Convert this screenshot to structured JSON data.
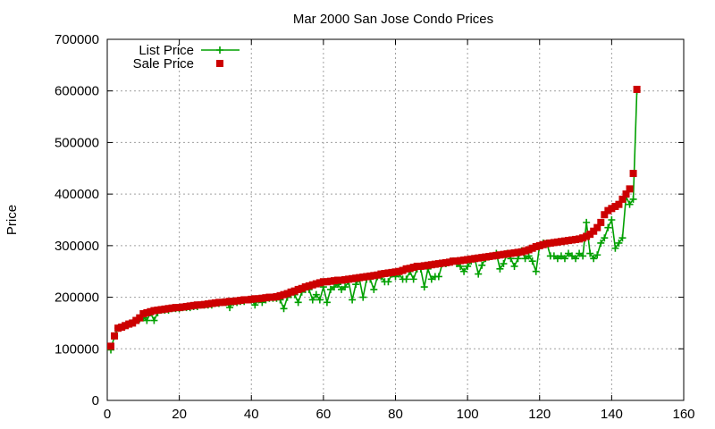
{
  "chart_data": {
    "type": "line",
    "title": "Mar 2000 San Jose Condo Prices",
    "xlabel": "",
    "ylabel": "Price",
    "xlim": [
      0,
      160
    ],
    "ylim": [
      0,
      700000
    ],
    "x_ticks": [
      0,
      20,
      40,
      60,
      80,
      100,
      120,
      140,
      160
    ],
    "y_ticks": [
      0,
      100000,
      200000,
      300000,
      400000,
      500000,
      600000,
      700000
    ],
    "grid": true,
    "legend_position": "top-left",
    "series": [
      {
        "name": "List Price",
        "style": "line-with-plus-markers",
        "color": "#00a000",
        "x": [
          1,
          2,
          3,
          4,
          5,
          6,
          7,
          8,
          9,
          10,
          11,
          12,
          13,
          14,
          15,
          16,
          17,
          18,
          19,
          20,
          21,
          22,
          23,
          24,
          25,
          26,
          27,
          28,
          29,
          30,
          31,
          32,
          33,
          34,
          35,
          36,
          37,
          38,
          39,
          40,
          41,
          42,
          43,
          44,
          45,
          46,
          47,
          48,
          49,
          50,
          51,
          52,
          53,
          54,
          55,
          56,
          57,
          58,
          59,
          60,
          61,
          62,
          63,
          64,
          65,
          66,
          67,
          68,
          69,
          70,
          71,
          72,
          73,
          74,
          75,
          76,
          77,
          78,
          79,
          80,
          81,
          82,
          83,
          84,
          85,
          86,
          87,
          88,
          89,
          90,
          91,
          92,
          93,
          94,
          95,
          96,
          97,
          98,
          99,
          100,
          101,
          102,
          103,
          104,
          105,
          106,
          107,
          108,
          109,
          110,
          111,
          112,
          113,
          114,
          115,
          116,
          117,
          118,
          119,
          120,
          121,
          122,
          123,
          124,
          125,
          126,
          127,
          128,
          129,
          130,
          131,
          132,
          133,
          134,
          135,
          136,
          137,
          138,
          139,
          140,
          141,
          142,
          143,
          144,
          145,
          146,
          147
        ],
        "values": [
          98000,
          125000,
          140000,
          142000,
          145000,
          148000,
          150000,
          155000,
          158000,
          160000,
          155000,
          170000,
          155000,
          170000,
          175000,
          175000,
          175000,
          178000,
          178000,
          178000,
          180000,
          180000,
          180000,
          182000,
          182000,
          185000,
          185000,
          185000,
          185000,
          188000,
          188000,
          190000,
          190000,
          180000,
          190000,
          190000,
          192000,
          192000,
          195000,
          195000,
          185000,
          195000,
          190000,
          195000,
          198000,
          198000,
          198000,
          195000,
          178000,
          200000,
          205000,
          205000,
          190000,
          210000,
          215000,
          215000,
          195000,
          205000,
          195000,
          220000,
          190000,
          215000,
          220000,
          225000,
          215000,
          220000,
          230000,
          195000,
          225000,
          235000,
          200000,
          235000,
          235000,
          215000,
          240000,
          240000,
          230000,
          230000,
          245000,
          240000,
          245000,
          235000,
          235000,
          250000,
          235000,
          255000,
          255000,
          220000,
          255000,
          235000,
          240000,
          240000,
          265000,
          265000,
          268000,
          270000,
          265000,
          260000,
          250000,
          260000,
          270000,
          275000,
          245000,
          262000,
          275000,
          278000,
          280000,
          285000,
          255000,
          265000,
          285000,
          275000,
          260000,
          275000,
          290000,
          275000,
          280000,
          270000,
          250000,
          300000,
          305000,
          305000,
          280000,
          280000,
          275000,
          280000,
          275000,
          285000,
          280000,
          275000,
          285000,
          280000,
          345000,
          285000,
          275000,
          282000,
          305000,
          315000,
          335000,
          350000,
          295000,
          305000,
          315000,
          395000,
          380000,
          390000,
          600000
        ]
      },
      {
        "name": "Sale Price",
        "style": "square-markers",
        "color": "#cc0000",
        "x": [
          1,
          2,
          3,
          4,
          5,
          6,
          7,
          8,
          9,
          10,
          11,
          12,
          13,
          14,
          15,
          16,
          17,
          18,
          19,
          20,
          21,
          22,
          23,
          24,
          25,
          26,
          27,
          28,
          29,
          30,
          31,
          32,
          33,
          34,
          35,
          36,
          37,
          38,
          39,
          40,
          41,
          42,
          43,
          44,
          45,
          46,
          47,
          48,
          49,
          50,
          51,
          52,
          53,
          54,
          55,
          56,
          57,
          58,
          59,
          60,
          61,
          62,
          63,
          64,
          65,
          66,
          67,
          68,
          69,
          70,
          71,
          72,
          73,
          74,
          75,
          76,
          77,
          78,
          79,
          80,
          81,
          82,
          83,
          84,
          85,
          86,
          87,
          88,
          89,
          90,
          91,
          92,
          93,
          94,
          95,
          96,
          97,
          98,
          99,
          100,
          101,
          102,
          103,
          104,
          105,
          106,
          107,
          108,
          109,
          110,
          111,
          112,
          113,
          114,
          115,
          116,
          117,
          118,
          119,
          120,
          121,
          122,
          123,
          124,
          125,
          126,
          127,
          128,
          129,
          130,
          131,
          132,
          133,
          134,
          135,
          136,
          137,
          138,
          139,
          140,
          141,
          142,
          143,
          144,
          145,
          146,
          147
        ],
        "values": [
          105000,
          125000,
          140000,
          142000,
          145000,
          148000,
          150000,
          155000,
          160000,
          168000,
          170000,
          172000,
          174000,
          175000,
          176000,
          177000,
          178000,
          179000,
          180000,
          180000,
          181000,
          182000,
          183000,
          184000,
          185000,
          185000,
          186000,
          187000,
          188000,
          189000,
          190000,
          190000,
          191000,
          192000,
          192000,
          193000,
          194000,
          195000,
          195000,
          196000,
          197000,
          197000,
          198000,
          199000,
          200000,
          200000,
          201000,
          203000,
          205000,
          207000,
          210000,
          212000,
          215000,
          217000,
          220000,
          222000,
          224000,
          226000,
          228000,
          230000,
          230000,
          231000,
          232000,
          233000,
          233000,
          234000,
          235000,
          236000,
          237000,
          238000,
          239000,
          240000,
          241000,
          242000,
          243000,
          245000,
          246000,
          247000,
          248000,
          249000,
          250000,
          252000,
          255000,
          256000,
          258000,
          260000,
          260000,
          261000,
          262000,
          263000,
          264000,
          265000,
          266000,
          267000,
          268000,
          270000,
          270000,
          271000,
          272000,
          273000,
          274000,
          275000,
          276000,
          277000,
          278000,
          279000,
          280000,
          281000,
          282000,
          283000,
          284000,
          285000,
          286000,
          287000,
          288000,
          290000,
          292000,
          295000,
          298000,
          300000,
          302000,
          304000,
          305000,
          306000,
          307000,
          308000,
          309000,
          310000,
          311000,
          312000,
          313000,
          315000,
          318000,
          322000,
          328000,
          335000,
          345000,
          360000,
          368000,
          372000,
          376000,
          380000,
          390000,
          400000,
          410000,
          440000,
          603000
        ]
      }
    ]
  }
}
